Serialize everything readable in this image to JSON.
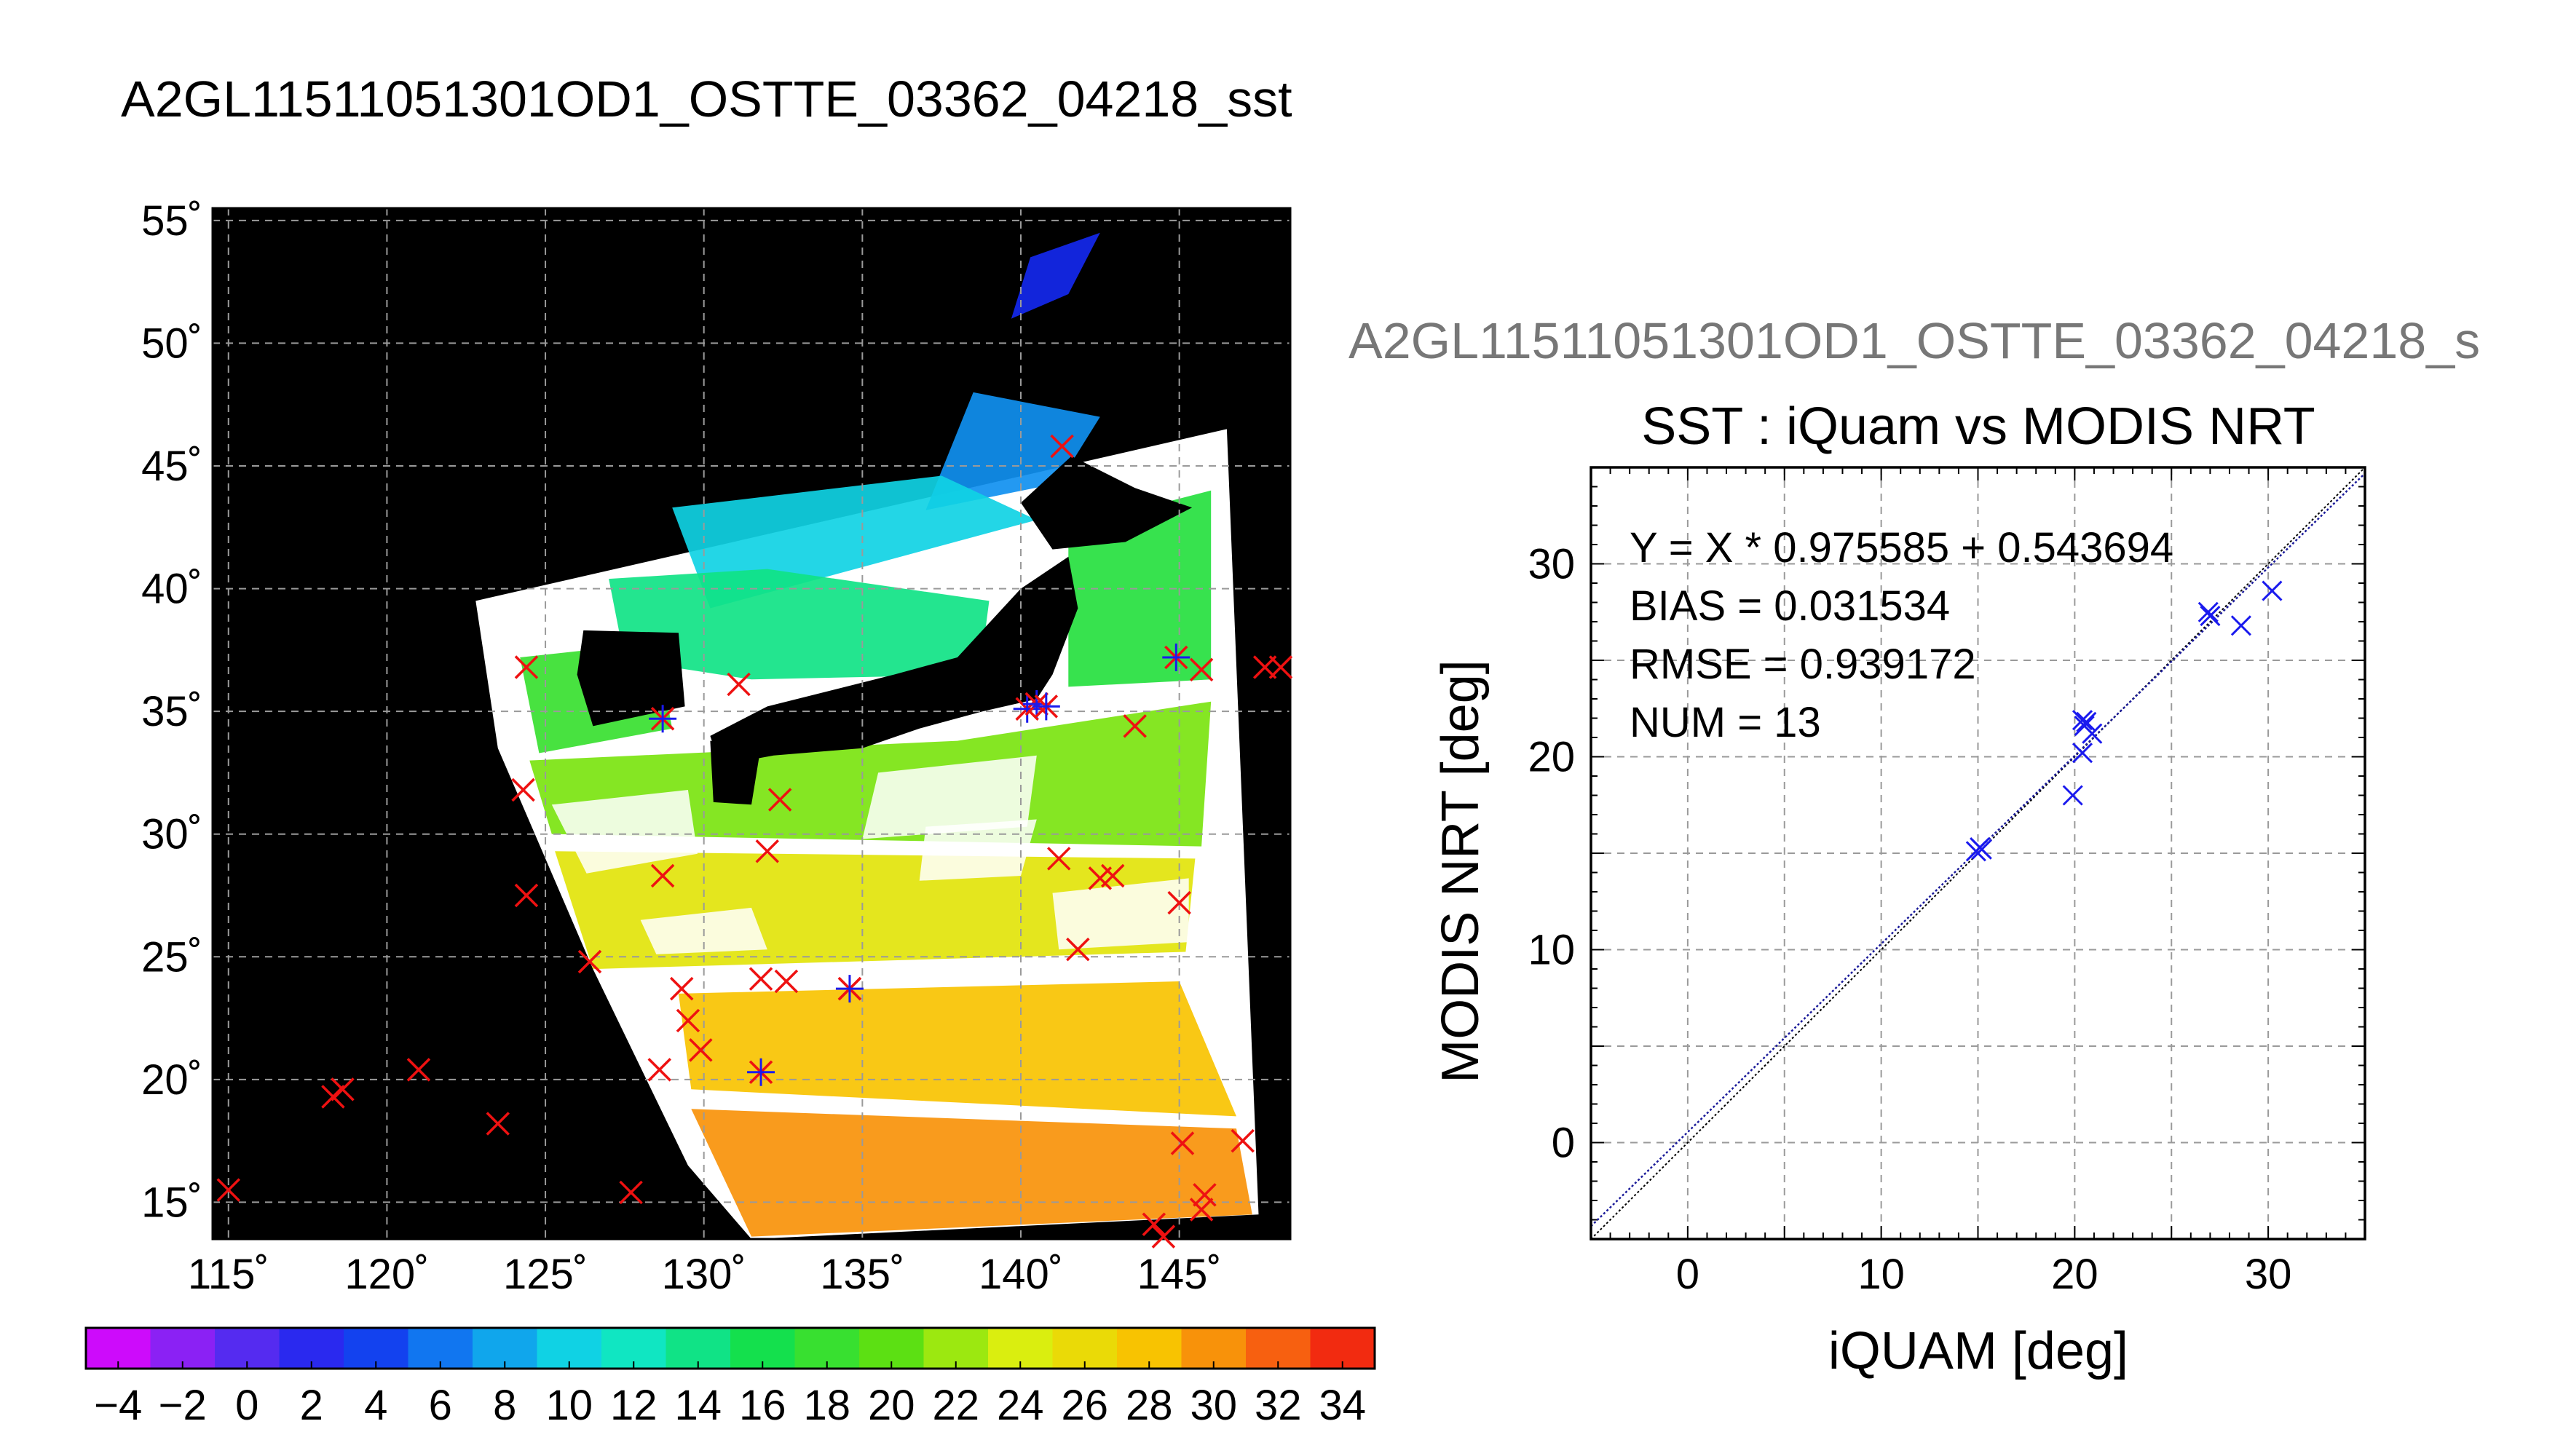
{
  "titles": {
    "map_title": "A2GL11511051301OD1_OSTTE_03362_04218_sst",
    "scatter_file_title": "A2GL11511051301OD1_OSTTE_03362_04218_s"
  },
  "colors": {
    "background": "#ffffff",
    "land_mask": "#000000",
    "grid": "#9a9a9a",
    "buoy_marker": "#ee1111",
    "matchup_marker": "#1a1aee",
    "fit_line": "#1a1a99"
  },
  "chart_data": [
    {
      "type": "scatter",
      "subtype": "map",
      "x_axis": {
        "lim": [
          114.5,
          148.5
        ],
        "ticks": [
          115,
          120,
          125,
          130,
          135,
          140,
          145
        ],
        "tick_labels": [
          "115˚",
          "120˚",
          "125˚",
          "130˚",
          "135˚",
          "140˚",
          "145˚"
        ]
      },
      "y_axis": {
        "lim": [
          13.5,
          55.5
        ],
        "ticks": [
          15,
          20,
          25,
          30,
          35,
          40,
          45,
          50,
          55
        ],
        "tick_labels": [
          "15˚",
          "20˚",
          "25˚",
          "30˚",
          "35˚",
          "40˚",
          "45˚",
          "50˚",
          "55˚"
        ]
      },
      "grid": true,
      "swath_polygon": [
        [
          122.8,
          39.5
        ],
        [
          146.5,
          46.5
        ],
        [
          147.5,
          14.5
        ],
        [
          131.5,
          13.5
        ],
        [
          129.5,
          16.5
        ],
        [
          126.5,
          24.5
        ],
        [
          123.5,
          33.5
        ]
      ],
      "sst_cloud_patches": [
        {
          "sst": 3,
          "points": [
            [
              140.3,
              53.5
            ],
            [
              142.5,
              54.5
            ],
            [
              141.5,
              52
            ],
            [
              139.7,
              51
            ]
          ]
        },
        {
          "sst": 7,
          "points": [
            [
              138.5,
              48
            ],
            [
              142.5,
              47
            ],
            [
              141.2,
              44.3
            ],
            [
              137,
              43.2
            ]
          ]
        },
        {
          "sst": 10,
          "points": [
            [
              129,
              43.3
            ],
            [
              137.5,
              44.6
            ],
            [
              140.5,
              42.8
            ],
            [
              130.2,
              39.2
            ]
          ]
        },
        {
          "sst": 14,
          "points": [
            [
              127,
              40.4
            ],
            [
              132,
              40.8
            ],
            [
              139,
              39.5
            ],
            [
              138.7,
              36.5
            ],
            [
              131.5,
              36.3
            ],
            [
              127.5,
              37.1
            ]
          ]
        },
        {
          "sst": 17,
          "points": [
            [
              141.5,
              42.5
            ],
            [
              146,
              44
            ],
            [
              146,
              36.3
            ],
            [
              141.5,
              36
            ]
          ]
        },
        {
          "sst": 18,
          "points": [
            [
              124.2,
              37.2
            ],
            [
              128.5,
              37.8
            ],
            [
              129,
              34.3
            ],
            [
              124.8,
              33.3
            ]
          ]
        },
        {
          "sst": 21,
          "points": [
            [
              124.5,
              33
            ],
            [
              133,
              33.5
            ],
            [
              138,
              33.8
            ],
            [
              146,
              35.4
            ],
            [
              145.7,
              29.5
            ],
            [
              125.2,
              30
            ]
          ]
        },
        {
          "sst": 25,
          "points": [
            [
              125.3,
              29.3
            ],
            [
              145.5,
              29
            ],
            [
              145.2,
              25.2
            ],
            [
              126.5,
              24.5
            ]
          ]
        },
        {
          "sst": 28,
          "points": [
            [
              129.2,
              23.5
            ],
            [
              145,
              24
            ],
            [
              146.8,
              18.5
            ],
            [
              129.6,
              19.6
            ]
          ]
        },
        {
          "sst": 30,
          "points": [
            [
              129.6,
              18.8
            ],
            [
              146.8,
              18
            ],
            [
              147.3,
              14.5
            ],
            [
              131.5,
              13.6
            ]
          ]
        }
      ],
      "cloud_patches": [
        [
          [
            125.2,
            31.2
          ],
          [
            129.5,
            31.8
          ],
          [
            129.8,
            29.2
          ],
          [
            126.3,
            28.4
          ]
        ],
        [
          [
            135.5,
            32.5
          ],
          [
            140.5,
            33.2
          ],
          [
            140.2,
            30.3
          ],
          [
            135,
            29.8
          ]
        ],
        [
          [
            128,
            26.5
          ],
          [
            131.5,
            27
          ],
          [
            132,
            25.3
          ],
          [
            128.5,
            25.1
          ]
        ],
        [
          [
            141,
            27.6
          ],
          [
            145.3,
            28.2
          ],
          [
            145.3,
            25.6
          ],
          [
            141.2,
            25.3
          ]
        ],
        [
          [
            137,
            30.3
          ],
          [
            140.5,
            30.6
          ],
          [
            140,
            28.3
          ],
          [
            136.8,
            28.1
          ]
        ]
      ],
      "buoy_points": [
        [
          115,
          15.5
        ],
        [
          118.3,
          19.3
        ],
        [
          118.6,
          19.6
        ],
        [
          121,
          20.4
        ],
        [
          123.5,
          18.2
        ],
        [
          124.3,
          31.8
        ],
        [
          124.4,
          27.5
        ],
        [
          124.4,
          36.8
        ],
        [
          126.4,
          24.8
        ],
        [
          127.7,
          15.4
        ],
        [
          128.6,
          20.4
        ],
        [
          128.7,
          28.3
        ],
        [
          129.3,
          23.7
        ],
        [
          129.5,
          22.4
        ],
        [
          129.9,
          21.2
        ],
        [
          131.1,
          36.1
        ],
        [
          131.8,
          24.1
        ],
        [
          132,
          29.3
        ],
        [
          132.4,
          31.4
        ],
        [
          132.6,
          24
        ],
        [
          134.6,
          23.7
        ],
        [
          141.2,
          29
        ],
        [
          141.3,
          45.8
        ],
        [
          141.8,
          25.3
        ],
        [
          142.5,
          28.2
        ],
        [
          142.9,
          28.3
        ],
        [
          143.6,
          34.4
        ],
        [
          144.2,
          14.1
        ],
        [
          144.5,
          13.6
        ],
        [
          145,
          27.2
        ],
        [
          145.1,
          17.4
        ],
        [
          145.7,
          36.7
        ],
        [
          145.7,
          14.7
        ],
        [
          145.8,
          15.3
        ],
        [
          147,
          17.5
        ],
        [
          147.7,
          36.8
        ],
        [
          148.2,
          36.8
        ]
      ],
      "matchup_points": [
        [
          128.7,
          34.7
        ],
        [
          131.8,
          20.3
        ],
        [
          134.6,
          23.7
        ],
        [
          140.2,
          35.1
        ],
        [
          140.5,
          35.3
        ],
        [
          140.8,
          35.2
        ],
        [
          144.9,
          37.2
        ]
      ],
      "colorbar": {
        "min": -5,
        "max": 35,
        "step": 2,
        "tick_values": [
          -4,
          -2,
          0,
          2,
          4,
          6,
          8,
          10,
          12,
          14,
          16,
          18,
          20,
          22,
          24,
          26,
          28,
          30,
          32,
          34
        ],
        "tick_labels": [
          "−4",
          "−2",
          "0",
          "2",
          "4",
          "6",
          "8",
          "10",
          "12",
          "14",
          "16",
          "18",
          "20",
          "22",
          "24",
          "26",
          "28",
          "30",
          "32",
          "34"
        ]
      }
    },
    {
      "type": "scatter",
      "title": "SST : iQuam vs MODIS NRT",
      "xlabel": "iQUAM [deg]",
      "ylabel": "MODIS NRT [deg]",
      "xlim": [
        -5,
        35
      ],
      "ylim": [
        -5,
        35
      ],
      "x_ticks": [
        0,
        10,
        20,
        30
      ],
      "y_ticks": [
        0,
        10,
        20,
        30
      ],
      "grid": true,
      "annotations": [
        "Y = X * 0.975585 + 0.543694",
        "BIAS = 0.031534",
        "RMSE = 0.939172",
        "NUM = 13"
      ],
      "fit": {
        "slope": 0.975585,
        "intercept": 0.543694
      },
      "points": [
        [
          15.1,
          15.3
        ],
        [
          15.2,
          15.2
        ],
        [
          19.9,
          18.0
        ],
        [
          20.4,
          20.2
        ],
        [
          20.5,
          21.6
        ],
        [
          20.4,
          21.9
        ],
        [
          20.6,
          21.8
        ],
        [
          20.9,
          21.2
        ],
        [
          26.9,
          27.5
        ],
        [
          27.0,
          27.3
        ],
        [
          28.6,
          26.8
        ],
        [
          30.2,
          28.6
        ],
        [
          14.9,
          15.1
        ]
      ]
    }
  ]
}
